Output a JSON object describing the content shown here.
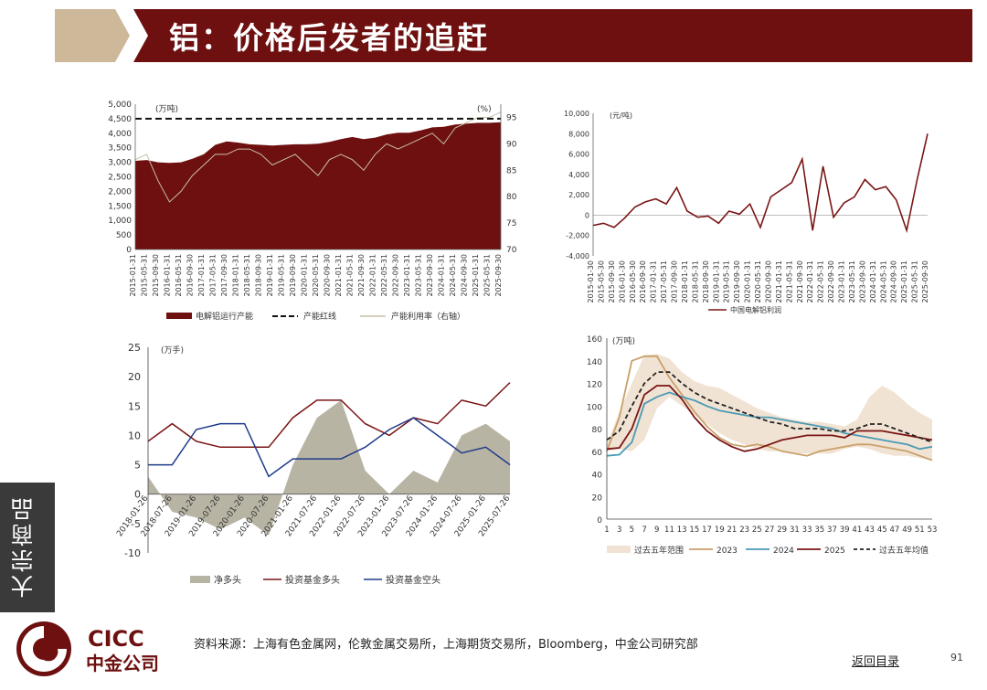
{
  "header": {
    "title": "铝：价格后发者的追赶"
  },
  "side_tab": {
    "label": "大宗商品"
  },
  "footer": {
    "source": "资料来源：上海有色金属网，伦敦金属交易所，上海期货交易所，Bloomberg，中金公司研究部",
    "back_link": "返回目录",
    "page_number": "91"
  },
  "logo": {
    "text_en": "CICC",
    "text_cn": "中金公司"
  },
  "colors": {
    "brand": "#6e1010",
    "maroon": "#7a1515",
    "navy": "#1f3a8a",
    "teal": "#4a9ab5",
    "tan": "#c9a06a",
    "range": "#f1e3d3",
    "grey": "#b8b4a4"
  },
  "chart_data": [
    {
      "id": "capacity",
      "type": "area",
      "left_unit": "(万吨)",
      "right_unit": "(%)",
      "ylim": [
        0,
        5000
      ],
      "yticks": [
        "5,000",
        "4,500",
        "4,000",
        "3,500",
        "3,000",
        "2,500",
        "2,000",
        "1,500",
        "1,000",
        "500",
        "0"
      ],
      "y2lim": [
        70,
        97.5
      ],
      "y2ticks": [
        "95",
        "90",
        "85",
        "80",
        "75",
        "70"
      ],
      "x_labels": [
        "2015-01-31",
        "2015-05-31",
        "2015-09-30",
        "2016-01-31",
        "2016-05-31",
        "2016-09-30",
        "2017-01-31",
        "2017-05-31",
        "2017-09-30",
        "2018-01-31",
        "2018-05-31",
        "2018-09-30",
        "2019-01-31",
        "2019-05-31",
        "2019-09-30",
        "2020-01-31",
        "2020-05-31",
        "2020-09-30",
        "2021-01-31",
        "2021-05-31",
        "2021-09-30",
        "2022-01-31",
        "2022-05-31",
        "2022-09-30",
        "2023-01-31",
        "2023-05-31",
        "2023-09-30",
        "2024-01-31",
        "2024-05-31",
        "2024-09-30",
        "2025-01-31",
        "2025-05-31",
        "2025-09-30"
      ],
      "cap_line": 4500,
      "capacity": [
        3050,
        3080,
        3000,
        2980,
        3000,
        3120,
        3280,
        3600,
        3720,
        3680,
        3620,
        3600,
        3580,
        3600,
        3620,
        3620,
        3640,
        3700,
        3800,
        3870,
        3800,
        3850,
        3960,
        4020,
        4020,
        4100,
        4200,
        4220,
        4300,
        4330,
        4360,
        4360,
        4380
      ],
      "utilization": [
        87,
        88,
        83,
        79,
        81,
        84,
        86,
        88,
        88,
        89,
        89,
        88,
        86,
        87,
        88,
        86,
        84,
        87,
        88,
        87,
        85,
        88,
        90,
        89,
        90,
        91,
        92,
        90,
        93,
        94,
        95,
        95,
        96
      ],
      "legend": [
        "电解铝运行产能",
        "产能红线",
        "产能利用率（右轴）"
      ]
    },
    {
      "id": "profit",
      "type": "line",
      "unit": "(元/吨)",
      "ylim": [
        -4000,
        10000
      ],
      "yticks": [
        "10,000",
        "8,000",
        "6,000",
        "4,000",
        "2,000",
        "0",
        "-2,000",
        "-4,000"
      ],
      "x_labels": [
        "2015-01-30",
        "2015-05-30",
        "2015-09-30",
        "2016-01-30",
        "2016-05-30",
        "2016-09-30",
        "2017-01-31",
        "2017-05-31",
        "2017-09-30",
        "2018-01-31",
        "2018-05-31",
        "2018-09-30",
        "2019-01-31",
        "2019-05-31",
        "2019-09-30",
        "2020-01-31",
        "2020-05-31",
        "2020-09-30",
        "2021-01-31",
        "2021-05-31",
        "2021-09-30",
        "2022-01-31",
        "2022-05-31",
        "2022-09-30",
        "2023-01-31",
        "2023-05-31",
        "2023-09-30",
        "2024-01-31",
        "2024-05-31",
        "2024-09-30",
        "2025-01-31",
        "2025-05-31",
        "2025-09-30"
      ],
      "values": [
        -1000,
        -800,
        -1200,
        -300,
        800,
        1300,
        1600,
        1100,
        2700,
        400,
        -200,
        -100,
        -800,
        400,
        100,
        1100,
        -1200,
        1800,
        2500,
        3200,
        5500,
        -1500,
        4800,
        -200,
        1200,
        1800,
        3500,
        2500,
        2800,
        1500,
        -1500,
        3500,
        8000
      ],
      "legend": [
        "中国电解铝利润"
      ]
    },
    {
      "id": "positions",
      "type": "line",
      "unit": "(万手)",
      "ylim": [
        -10,
        25
      ],
      "yticks": [
        "25",
        "20",
        "15",
        "10",
        "5",
        "0",
        "-5",
        "-10"
      ],
      "x_labels": [
        "2018-01-26",
        "2018-07-26",
        "2019-01-26",
        "2019-07-26",
        "2020-01-26",
        "2020-07-26",
        "2021-01-26",
        "2021-07-26",
        "2022-01-26",
        "2022-07-26",
        "2023-01-26",
        "2023-07-26",
        "2024-01-26",
        "2024-07-26",
        "2025-01-26",
        "2025-07-26"
      ],
      "net_long": [
        3,
        -3,
        -4,
        -6,
        -4,
        -7,
        5,
        13,
        16,
        4,
        0,
        4,
        2,
        10,
        12,
        9
      ],
      "fund_long": [
        9,
        12,
        9,
        8,
        8,
        8,
        13,
        16,
        16,
        12,
        10,
        13,
        12,
        16,
        15,
        19
      ],
      "fund_short": [
        5,
        5,
        11,
        12,
        12,
        3,
        6,
        6,
        6,
        8,
        11,
        13,
        10,
        7,
        8,
        5
      ],
      "legend": [
        "净多头",
        "投资基金多头",
        "投资基金空头"
      ]
    },
    {
      "id": "inventory",
      "type": "line",
      "unit": "(万吨)",
      "ylim": [
        0,
        160
      ],
      "yticks": [
        "160",
        "140",
        "120",
        "100",
        "80",
        "60",
        "40",
        "20",
        "0"
      ],
      "x_labels": [
        "1",
        "3",
        "5",
        "7",
        "9",
        "11",
        "13",
        "15",
        "17",
        "19",
        "21",
        "23",
        "25",
        "27",
        "29",
        "31",
        "33",
        "35",
        "37",
        "39",
        "41",
        "43",
        "45",
        "47",
        "49",
        "51",
        "53"
      ],
      "range_high": [
        66,
        95,
        120,
        145,
        146,
        142,
        130,
        122,
        118,
        116,
        110,
        104,
        98,
        94,
        90,
        88,
        86,
        86,
        84,
        82,
        88,
        108,
        118,
        112,
        102,
        94,
        88
      ],
      "range_low": [
        60,
        62,
        60,
        70,
        98,
        108,
        100,
        92,
        84,
        76,
        70,
        66,
        62,
        60,
        60,
        58,
        58,
        58,
        58,
        62,
        64,
        62,
        58,
        56,
        56,
        54,
        52
      ],
      "y2023": [
        60,
        90,
        140,
        144,
        144,
        125,
        110,
        95,
        82,
        72,
        66,
        64,
        66,
        64,
        60,
        58,
        56,
        60,
        62,
        64,
        66,
        66,
        64,
        62,
        60,
        56,
        52
      ],
      "y2024": [
        56,
        57,
        68,
        102,
        108,
        112,
        108,
        105,
        100,
        96,
        94,
        92,
        90,
        90,
        88,
        86,
        84,
        82,
        80,
        76,
        74,
        72,
        70,
        68,
        66,
        62,
        64
      ],
      "y2025": [
        62,
        63,
        80,
        110,
        118,
        118,
        106,
        90,
        78,
        70,
        64,
        60,
        62,
        66,
        70,
        72,
        74,
        74,
        74,
        72,
        78,
        78,
        78,
        76,
        74,
        72,
        70
      ],
      "avg5": [
        70,
        78,
        100,
        120,
        130,
        130,
        120,
        112,
        106,
        102,
        98,
        94,
        90,
        86,
        84,
        80,
        80,
        80,
        78,
        78,
        80,
        84,
        84,
        80,
        76,
        72,
        68
      ],
      "legend": [
        "过去五年范围",
        "2023",
        "2024",
        "2025",
        "过去五年均值"
      ]
    }
  ]
}
